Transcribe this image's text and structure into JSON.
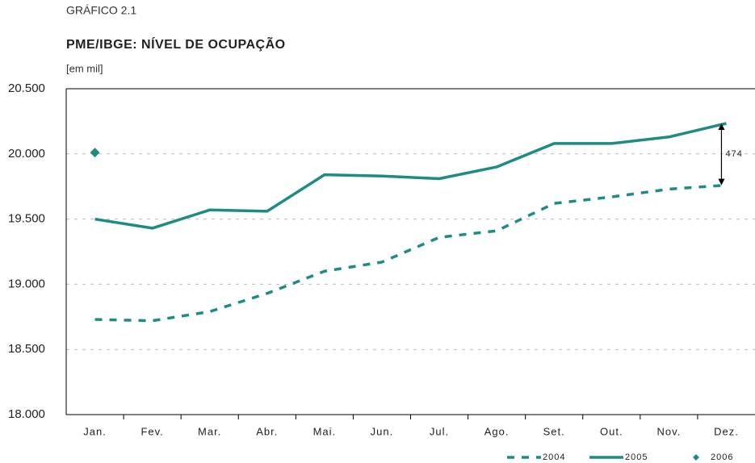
{
  "chart_data": {
    "type": "line",
    "label": "GRÁFICO 2.1",
    "title": "PME/IBGE: NÍVEL DE OCUPAÇÃO",
    "unit": "[em mil]",
    "categories": [
      "Jan.",
      "Fev.",
      "Mar.",
      "Abr.",
      "Mai.",
      "Jun.",
      "Jul.",
      "Ago.",
      "Set.",
      "Out.",
      "Nov.",
      "Dez."
    ],
    "series": [
      {
        "name": "2004",
        "color": "#1e8c82",
        "style": "dashed",
        "values": [
          18730,
          18720,
          18790,
          18930,
          19100,
          19170,
          19360,
          19410,
          19620,
          19670,
          19730,
          19760
        ]
      },
      {
        "name": "2005",
        "color": "#1e8c82",
        "style": "solid",
        "values": [
          19500,
          19430,
          19570,
          19560,
          19840,
          19830,
          19810,
          19900,
          20080,
          20080,
          20130,
          20234
        ]
      },
      {
        "name": "2006",
        "color": "#1e8c82",
        "style": "diamond",
        "values": [
          20010,
          null,
          null,
          null,
          null,
          null,
          null,
          null,
          null,
          null,
          null,
          null
        ]
      }
    ],
    "annotation": "474",
    "ylim": [
      18000,
      20500
    ],
    "yticks": [
      {
        "value": 18000,
        "label": "18.000"
      },
      {
        "value": 18500,
        "label": "18.500"
      },
      {
        "value": 19000,
        "label": "19.000"
      },
      {
        "value": 19500,
        "label": "19.500"
      },
      {
        "value": 20000,
        "label": "20.000"
      },
      {
        "value": 20500,
        "label": "20.500"
      }
    ],
    "grid": true
  }
}
